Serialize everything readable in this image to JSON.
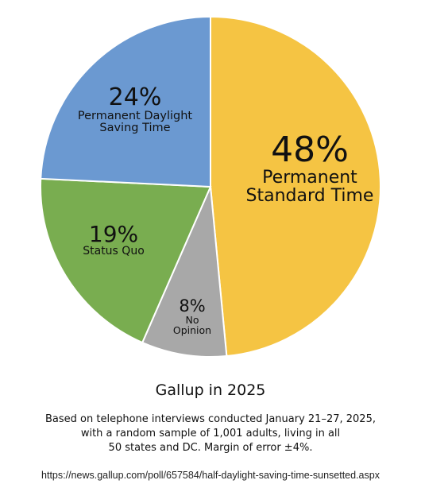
{
  "chart_data": {
    "type": "pie",
    "title": "Gallup in 2025",
    "categories": [
      "Permanent Standard Time",
      "No Opinion",
      "Status Quo",
      "Permanent Daylight Saving Time"
    ],
    "values": [
      48,
      8,
      19,
      24
    ],
    "value_labels": [
      "48%",
      "8%",
      "19%",
      "24%"
    ],
    "colors": [
      "#f5c443",
      "#a8a8a8",
      "#79ad50",
      "#6b99d1"
    ],
    "note": [
      "Based on telephone interviews conducted January 21–27, 2025,",
      "with a random sample of 1,001 adults, living in all",
      "50 states and DC. Margin of error ±4%."
    ],
    "source": "https://news.gallup.com/poll/657584/half-daylight-saving-time-sunsetted.aspx"
  }
}
